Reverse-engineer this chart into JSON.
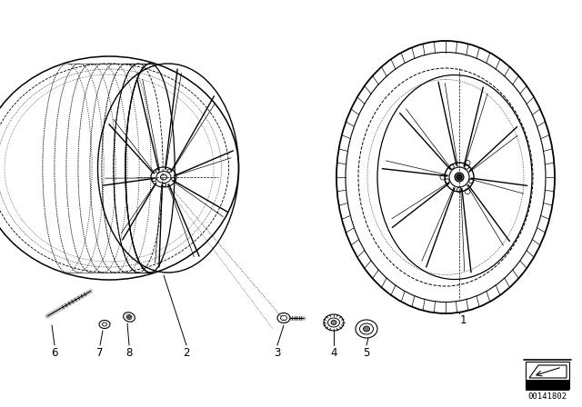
{
  "background_color": "#ffffff",
  "image_number": "00141802",
  "line_color": "#000000"
}
